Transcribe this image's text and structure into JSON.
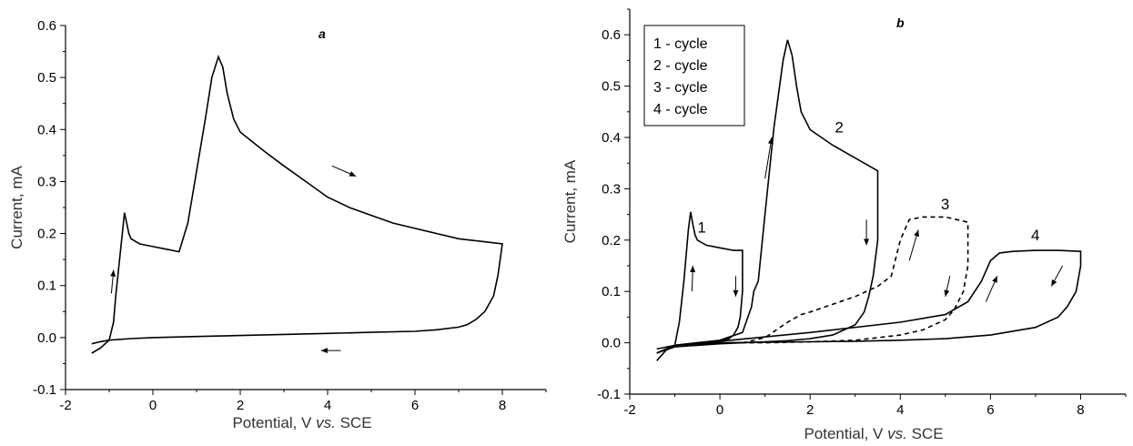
{
  "chart_data": [
    {
      "type": "line",
      "panel_label": "a",
      "xlabel_parts": [
        "Potential, V ",
        "vs.",
        " SCE"
      ],
      "ylabel": "Current, mA",
      "xlim": [
        -2,
        9
      ],
      "ylim": [
        -0.1,
        0.6
      ],
      "xticks": [
        -2,
        0,
        2,
        4,
        6,
        8
      ],
      "yticks": [
        -0.1,
        0.0,
        0.1,
        0.2,
        0.3,
        0.4,
        0.5,
        0.6
      ],
      "ytick_labels": [
        "-0.1",
        "0.0",
        "0.1",
        "0.2",
        "0.3",
        "0.4",
        "0.5",
        "0.6"
      ],
      "series": [
        {
          "style": "solid",
          "x": [
            -1.4,
            -1.2,
            -1.0,
            -0.9,
            -0.85,
            -0.8,
            -0.75,
            -0.7,
            -0.65,
            -0.6,
            -0.55,
            -0.5,
            -0.3,
            0.0,
            0.3,
            0.6,
            0.8,
            1.0,
            1.2,
            1.35,
            1.5,
            1.6,
            1.7,
            1.85,
            2.0,
            2.3,
            2.6,
            3.0,
            3.5,
            4.0,
            4.5,
            5.0,
            5.5,
            6.0,
            6.5,
            7.0,
            7.5,
            8.0,
            7.9,
            7.8,
            7.6,
            7.4,
            7.2,
            7.0,
            6.5,
            6.0,
            5.0,
            4.0,
            3.0,
            2.0,
            1.0,
            0.0,
            -0.5,
            -1.0,
            -1.2,
            -1.4
          ],
          "y": [
            -0.03,
            -0.02,
            -0.005,
            0.03,
            0.08,
            0.12,
            0.16,
            0.2,
            0.24,
            0.22,
            0.2,
            0.19,
            0.18,
            0.175,
            0.17,
            0.165,
            0.22,
            0.32,
            0.42,
            0.5,
            0.54,
            0.52,
            0.47,
            0.42,
            0.395,
            0.375,
            0.355,
            0.33,
            0.3,
            0.27,
            0.25,
            0.235,
            0.22,
            0.21,
            0.2,
            0.19,
            0.185,
            0.18,
            0.12,
            0.08,
            0.05,
            0.035,
            0.025,
            0.02,
            0.015,
            0.012,
            0.01,
            0.008,
            0.006,
            0.004,
            0.002,
            0.0,
            -0.002,
            -0.005,
            -0.008,
            -0.012
          ]
        }
      ]
    },
    {
      "type": "line",
      "panel_label": "b",
      "xlabel_parts": [
        "Potential, V ",
        "vs.",
        " SCE"
      ],
      "ylabel": "Current, mA",
      "xlim": [
        -2,
        9
      ],
      "ylim": [
        -0.1,
        0.65
      ],
      "xticks": [
        -2,
        0,
        2,
        4,
        6,
        8
      ],
      "yticks": [
        -0.1,
        0.0,
        0.1,
        0.2,
        0.3,
        0.4,
        0.5,
        0.6
      ],
      "ytick_labels": [
        "-0.1",
        "0.0",
        "0.1",
        "0.2",
        "0.3",
        "0.4",
        "0.5",
        "0.6"
      ],
      "legend": [
        "1 - cycle",
        "2 - cycle",
        "3 - cycle",
        "4 - cycle"
      ],
      "annotations": [
        "1",
        "2",
        "3",
        "4"
      ],
      "series": [
        {
          "style": "solid",
          "x": [
            -1.4,
            -1.2,
            -1.0,
            -0.9,
            -0.8,
            -0.7,
            -0.65,
            -0.6,
            -0.55,
            -0.5,
            -0.3,
            0.0,
            0.3,
            0.5,
            0.5,
            0.45,
            0.4,
            0.3,
            0.2,
            0.0,
            -0.5,
            -1.0,
            -1.4
          ],
          "y": [
            -0.035,
            -0.015,
            -0.005,
            0.04,
            0.12,
            0.22,
            0.255,
            0.23,
            0.21,
            0.2,
            0.19,
            0.185,
            0.18,
            0.18,
            0.1,
            0.05,
            0.03,
            0.015,
            0.008,
            0.003,
            0.0,
            -0.005,
            -0.02
          ]
        },
        {
          "style": "solid",
          "x": [
            -1.4,
            -1.0,
            0.0,
            0.5,
            0.7,
            0.75,
            0.85,
            1.0,
            1.2,
            1.4,
            1.5,
            1.6,
            1.7,
            1.8,
            2.0,
            2.5,
            3.0,
            3.5,
            3.5,
            3.4,
            3.3,
            3.2,
            3.0,
            2.5,
            2.0,
            1.5,
            1.0,
            0.5,
            0.0,
            -1.0,
            -1.4
          ],
          "y": [
            -0.02,
            -0.005,
            0.005,
            0.02,
            0.07,
            0.1,
            0.12,
            0.25,
            0.42,
            0.55,
            0.59,
            0.56,
            0.5,
            0.45,
            0.415,
            0.385,
            0.36,
            0.335,
            0.2,
            0.13,
            0.09,
            0.06,
            0.035,
            0.015,
            0.008,
            0.004,
            0.002,
            0.0,
            -0.002,
            -0.008,
            -0.02
          ]
        },
        {
          "style": "dashed",
          "x": [
            0.5,
            1.0,
            1.5,
            1.8,
            2.0,
            3.0,
            3.5,
            3.8,
            4.0,
            4.2,
            4.5,
            5.0,
            5.5,
            5.5,
            5.4,
            5.2,
            5.0,
            4.5,
            4.0,
            3.0,
            2.0,
            1.0,
            0.5
          ],
          "y": [
            0.0,
            0.01,
            0.04,
            0.055,
            0.06,
            0.09,
            0.11,
            0.13,
            0.2,
            0.24,
            0.245,
            0.245,
            0.235,
            0.15,
            0.1,
            0.065,
            0.045,
            0.025,
            0.015,
            0.005,
            0.002,
            0.0,
            0.0
          ]
        },
        {
          "style": "solid",
          "x": [
            -1.4,
            -1.0,
            0.0,
            2.0,
            4.0,
            5.0,
            5.5,
            5.8,
            6.0,
            6.2,
            6.5,
            7.0,
            7.5,
            8.0,
            8.0,
            7.9,
            7.7,
            7.5,
            7.0,
            6.0,
            5.0,
            4.0,
            3.0,
            2.0,
            1.0,
            0.0,
            -1.0,
            -1.4
          ],
          "y": [
            -0.02,
            -0.005,
            0.003,
            0.02,
            0.04,
            0.055,
            0.08,
            0.12,
            0.16,
            0.175,
            0.178,
            0.18,
            0.18,
            0.178,
            0.15,
            0.1,
            0.07,
            0.05,
            0.03,
            0.015,
            0.008,
            0.005,
            0.003,
            0.002,
            0.001,
            0.0,
            -0.005,
            -0.012
          ]
        }
      ]
    }
  ]
}
